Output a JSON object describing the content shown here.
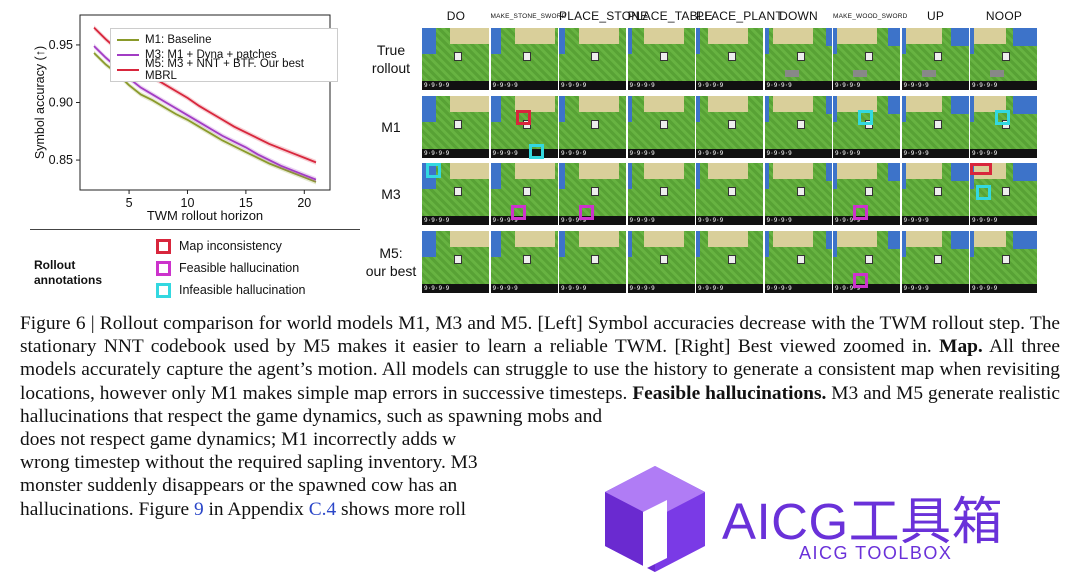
{
  "chart_data": {
    "type": "line",
    "xlabel": "TWM rollout horizon",
    "ylabel": "Symbol accuracy (↑)",
    "xlim": [
      0.8,
      22.2
    ],
    "ylim": [
      0.824,
      0.976
    ],
    "xticks": [
      5,
      10,
      15,
      20
    ],
    "yticks": [
      0.85,
      0.9,
      0.95
    ],
    "legend": "top-right",
    "grid": false,
    "series": [
      {
        "name": "M1: Baseline",
        "color": "#8a9a2a",
        "x": [
          2,
          3,
          4,
          5,
          6,
          7,
          8,
          9,
          10,
          11,
          12,
          13,
          14,
          15,
          16,
          17,
          18,
          19,
          20,
          21
        ],
        "y": [
          0.943,
          0.933,
          0.925,
          0.915,
          0.907,
          0.902,
          0.896,
          0.89,
          0.885,
          0.879,
          0.873,
          0.867,
          0.862,
          0.857,
          0.852,
          0.847,
          0.843,
          0.839,
          0.835,
          0.831
        ]
      },
      {
        "name": "M3: M1 + Dyna + patches",
        "color": "#a23cc4",
        "x": [
          2,
          3,
          4,
          5,
          6,
          7,
          8,
          9,
          10,
          11,
          12,
          13,
          14,
          15,
          16,
          17,
          18,
          19,
          20,
          21
        ],
        "y": [
          0.949,
          0.939,
          0.93,
          0.921,
          0.913,
          0.907,
          0.901,
          0.895,
          0.889,
          0.883,
          0.877,
          0.871,
          0.866,
          0.861,
          0.855,
          0.85,
          0.845,
          0.841,
          0.837,
          0.833
        ]
      },
      {
        "name": "M5: M3 + NNT + BTF. Our best MBRL",
        "color": "#d8263c",
        "x": [
          2,
          3,
          4,
          5,
          6,
          7,
          8,
          9,
          10,
          11,
          12,
          13,
          14,
          15,
          16,
          17,
          18,
          19,
          20,
          21
        ],
        "y": [
          0.965,
          0.955,
          0.946,
          0.937,
          0.929,
          0.922,
          0.916,
          0.91,
          0.904,
          0.897,
          0.891,
          0.885,
          0.879,
          0.874,
          0.869,
          0.864,
          0.86,
          0.856,
          0.852,
          0.848
        ]
      }
    ]
  },
  "annotations": {
    "title": "Rollout annotations",
    "items": [
      {
        "label": "Map inconsistency",
        "color": "#d8263c"
      },
      {
        "label": "Feasible hallucination",
        "color": "#cc33cc"
      },
      {
        "label": "Infeasible hallucination",
        "color": "#33d8e0"
      }
    ]
  },
  "grid": {
    "columns": [
      {
        "label": "DO",
        "small": false
      },
      {
        "label": "MAKE_STONE_SWORD",
        "small": true
      },
      {
        "label": "PLACE_STONE",
        "small": false
      },
      {
        "label": "PLACE_TABLE",
        "small": false
      },
      {
        "label": "PLACE_PLANT",
        "small": false
      },
      {
        "label": "DOWN",
        "small": false
      },
      {
        "label": "MAKE_WOOD_SWORD",
        "small": true
      },
      {
        "label": "UP",
        "small": false
      },
      {
        "label": "NOOP",
        "small": false
      }
    ],
    "rows": [
      {
        "label": "True\nrollout"
      },
      {
        "label": "M1"
      },
      {
        "label": "M3"
      },
      {
        "label": "M5:\nour best"
      }
    ],
    "inventory_text": "9·9·9·9",
    "highlights": [
      {
        "row": 1,
        "col": 1,
        "kind": "map",
        "color": "#d8263c"
      },
      {
        "row": 1,
        "col": 1,
        "kind": "infeasible",
        "color": "#33d8e0",
        "pos": "bottom"
      },
      {
        "row": 1,
        "col": 6,
        "kind": "infeasible",
        "color": "#33d8e0"
      },
      {
        "row": 1,
        "col": 8,
        "kind": "infeasible",
        "color": "#33d8e0"
      },
      {
        "row": 2,
        "col": 0,
        "kind": "infeasible",
        "color": "#33d8e0",
        "pos": "top"
      },
      {
        "row": 2,
        "col": 1,
        "kind": "feasible",
        "color": "#cc33cc",
        "pos": "bottom"
      },
      {
        "row": 2,
        "col": 2,
        "kind": "feasible",
        "color": "#cc33cc",
        "pos": "bottom"
      },
      {
        "row": 2,
        "col": 6,
        "kind": "feasible",
        "color": "#cc33cc",
        "pos": "bottom"
      },
      {
        "row": 2,
        "col": 8,
        "kind": "map",
        "color": "#d8263c",
        "pos": "top"
      },
      {
        "row": 2,
        "col": 8,
        "kind": "infeasible",
        "color": "#33d8e0"
      },
      {
        "row": 3,
        "col": 6,
        "kind": "feasible",
        "color": "#cc33cc",
        "pos": "bottom"
      }
    ]
  },
  "caption": {
    "fig_label": "Figure 6 | ",
    "p1": "Rollout comparison for world models M1, M3 and M5. [Left] Symbol accuracies decrease with the TWM rollout step. The stationary NNT codebook used by M5 makes it easier to learn a reliable TWM. [Right] Best viewed zoomed in. ",
    "map_bold": "Map.",
    "p2": " All three models accurately capture the agent’s motion. All models can struggle to use the history to generate a consistent map when revisiting locations, however only M1 makes simple map errors in successive timesteps. ",
    "feasible_bold": "Feasible hallucinations.",
    "p3": " M3 and M5 generate realistic hallucinations that respect the game dynamics, such as spawning mobs and",
    "line2": "does not respect game dynamics; M1 incorrectly adds w",
    "line3": "wrong timestep without the required sapling inventory. M3",
    "line4": "monster suddenly disappears or the spawned cow has an",
    "line5_a": "hallucinations. Figure ",
    "fig9": "9",
    "line5_b": " in Appendix ",
    "c4": "C.4",
    "line5_c": " shows more roll"
  },
  "watermark": {
    "title": "AICG工具箱",
    "subtitle": "AICG TOOLBOX",
    "color": "#6a31d9"
  }
}
